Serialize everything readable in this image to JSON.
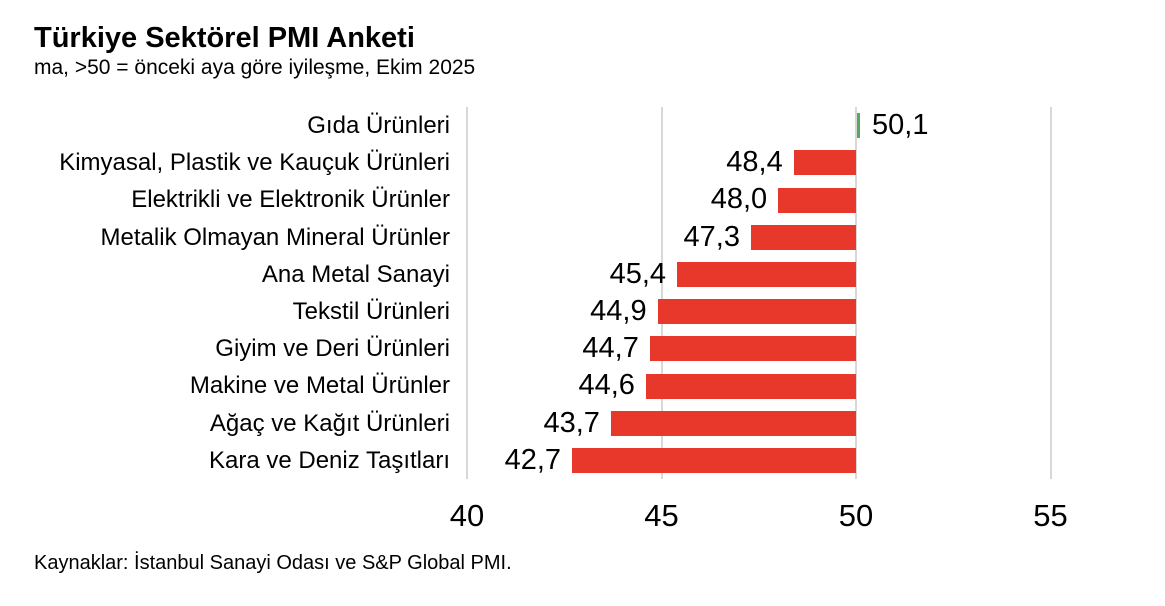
{
  "header": {
    "title": "Türkiye Sektörel PMI Anketi",
    "subtitle": "ma, >50 = önceki aya göre iyileşme, Ekim 2025"
  },
  "footer": {
    "source": "Kaynaklar: İstanbul Sanayi Odası ve S&P Global PMI."
  },
  "chart_data": {
    "type": "bar",
    "orientation": "horizontal",
    "title": "Türkiye Sektörel PMI Anketi",
    "subtitle": "ma, >50 = önceki aya göre iyileşme, Ekim 2025",
    "baseline": 50,
    "categories": [
      "Gıda Ürünleri",
      "Kimyasal, Plastik ve Kauçuk Ürünleri",
      "Elektrikli ve Elektronik Ürünler",
      "Metalik Olmayan Mineral Ürünler",
      "Ana Metal Sanayi",
      "Tekstil Ürünleri",
      "Giyim ve Deri Ürünleri",
      "Makine ve Metal Ürünler",
      "Ağaç ve Kağıt Ürünleri",
      "Kara ve Deniz Taşıtları"
    ],
    "values": [
      50.1,
      48.4,
      48.0,
      47.3,
      45.4,
      44.9,
      44.7,
      44.6,
      43.7,
      42.7
    ],
    "values_display": [
      "50,1",
      "48,4",
      "48,0",
      "47,3",
      "45,4",
      "44,9",
      "44,7",
      "44,6",
      "43,7",
      "42,7"
    ],
    "x_ticks": [
      40,
      45,
      50,
      55
    ],
    "x_tick_labels": [
      "40",
      "45",
      "50",
      "55"
    ],
    "xlim": [
      40,
      55
    ],
    "grid": "vertical-only",
    "legend": "none",
    "colors": {
      "above_baseline": "#56A95C",
      "below_baseline": "#E8372B",
      "gridline": "#D8D8D8",
      "text": "#000000",
      "background": "#FFFFFF"
    }
  }
}
